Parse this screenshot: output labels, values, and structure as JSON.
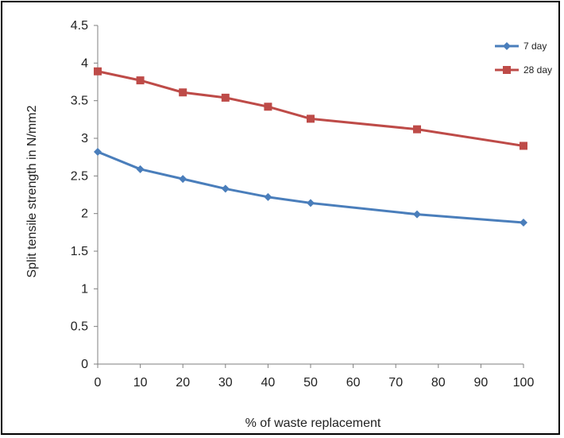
{
  "chart_data": {
    "type": "line",
    "title": "",
    "xlabel": "% of waste replacement",
    "ylabel": "Split tensile strength in N/mm2",
    "xlim": [
      0,
      100
    ],
    "ylim": [
      0,
      4.5
    ],
    "x_ticks": [
      0,
      10,
      20,
      30,
      40,
      50,
      60,
      70,
      80,
      90,
      100
    ],
    "y_ticks": [
      0,
      0.5,
      1,
      1.5,
      2,
      2.5,
      3,
      3.5,
      4,
      4.5
    ],
    "x_tick_labels": [
      "0",
      "10",
      "20",
      "30",
      "40",
      "50",
      "60",
      "70",
      "80",
      "90",
      "100"
    ],
    "y_tick_labels": [
      "0",
      "0.5",
      "1",
      "1.5",
      "2",
      "2.5",
      "3",
      "3.5",
      "4",
      "4.5"
    ],
    "grid": false,
    "legend_position": "top-right",
    "series": [
      {
        "name": "7 day",
        "color": "#4a7ebb",
        "marker": "diamond",
        "x": [
          0,
          10,
          20,
          30,
          40,
          50,
          75,
          100
        ],
        "y": [
          2.82,
          2.59,
          2.46,
          2.33,
          2.22,
          2.14,
          1.99,
          1.88
        ]
      },
      {
        "name": "28 day",
        "color": "#be4b48",
        "marker": "square",
        "x": [
          0,
          10,
          20,
          30,
          40,
          50,
          75,
          100
        ],
        "y": [
          3.89,
          3.77,
          3.61,
          3.54,
          3.42,
          3.26,
          3.12,
          2.9
        ]
      }
    ]
  }
}
